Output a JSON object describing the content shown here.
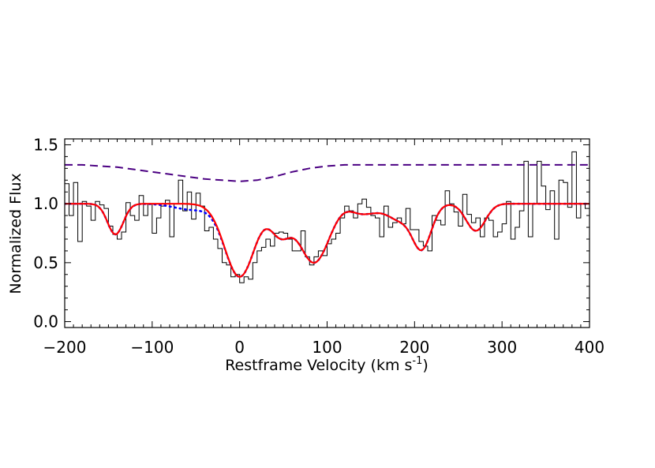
{
  "chart_data": {
    "type": "line",
    "title": "",
    "xlabel": "Restframe Velocity (km s",
    "xlabel_sup": "-1",
    "xlabel_end": ")",
    "ylabel": "Normalized Flux",
    "xlim": [
      -200,
      400
    ],
    "ylim": [
      -0.05,
      1.55
    ],
    "xticks": [
      -200,
      -100,
      0,
      100,
      200,
      300,
      400
    ],
    "xtick_labels": [
      "−200",
      "−100",
      "0",
      "100",
      "200",
      "300",
      "400"
    ],
    "yticks": [
      0.0,
      0.5,
      1.0,
      1.5
    ],
    "ytick_labels": [
      "0.0",
      "0.5",
      "1.0",
      "1.5"
    ],
    "grid": false,
    "colors": {
      "data": "#000000",
      "fit": "#ff0000",
      "model": "#0000ff",
      "offset": "#4b0082"
    },
    "series": [
      {
        "style": "step",
        "color": "#000000",
        "bin_width": 5,
        "x": [
          -200,
          -195,
          -190,
          -185,
          -180,
          -175,
          -170,
          -165,
          -160,
          -155,
          -150,
          -145,
          -140,
          -135,
          -130,
          -125,
          -120,
          -115,
          -110,
          -105,
          -100,
          -95,
          -90,
          -85,
          -80,
          -75,
          -70,
          -65,
          -60,
          -55,
          -50,
          -45,
          -40,
          -35,
          -30,
          -25,
          -20,
          -15,
          -10,
          -5,
          0,
          5,
          10,
          15,
          20,
          25,
          30,
          35,
          40,
          45,
          50,
          55,
          60,
          65,
          70,
          75,
          80,
          85,
          90,
          95,
          100,
          105,
          110,
          115,
          120,
          125,
          130,
          135,
          140,
          145,
          150,
          155,
          160,
          165,
          170,
          175,
          180,
          185,
          190,
          195,
          200,
          205,
          210,
          215,
          220,
          225,
          230,
          235,
          240,
          245,
          250,
          255,
          260,
          265,
          270,
          275,
          280,
          285,
          290,
          295,
          300,
          305,
          310,
          315,
          320,
          325,
          330,
          335,
          340,
          345,
          350,
          355,
          360,
          365,
          370,
          375,
          380,
          385,
          390,
          395
        ],
        "y": [
          1.17,
          0.9,
          1.18,
          0.68,
          1.02,
          0.98,
          0.86,
          1.02,
          0.99,
          0.96,
          0.81,
          0.74,
          0.7,
          0.76,
          1.01,
          0.9,
          0.86,
          1.07,
          0.9,
          1.0,
          0.75,
          0.88,
          0.98,
          1.03,
          0.72,
          1.0,
          1.2,
          0.94,
          1.1,
          0.87,
          1.09,
          0.98,
          0.77,
          0.8,
          0.7,
          0.62,
          0.5,
          0.48,
          0.38,
          0.4,
          0.33,
          0.38,
          0.36,
          0.5,
          0.6,
          0.63,
          0.7,
          0.64,
          0.75,
          0.76,
          0.75,
          0.7,
          0.6,
          0.6,
          0.77,
          0.55,
          0.48,
          0.55,
          0.6,
          0.56,
          0.66,
          0.7,
          0.75,
          0.88,
          0.98,
          0.94,
          0.88,
          1.0,
          1.04,
          0.97,
          0.9,
          0.88,
          0.72,
          0.98,
          0.8,
          0.84,
          0.88,
          0.83,
          0.96,
          0.78,
          0.78,
          0.68,
          0.64,
          0.6,
          0.9,
          0.86,
          0.82,
          1.11,
          1.0,
          0.93,
          0.81,
          1.08,
          0.91,
          0.84,
          0.88,
          0.72,
          0.88,
          0.86,
          0.72,
          0.76,
          0.83,
          1.02,
          0.7,
          0.8,
          0.94,
          1.36,
          0.72,
          1.0,
          1.36,
          1.15,
          0.95,
          1.11,
          0.7,
          1.2,
          1.18,
          0.97,
          1.44,
          0.88,
          1.0,
          0.96
        ]
      },
      {
        "style": "solid",
        "color": "#ff0000",
        "x": [],
        "y": []
      },
      {
        "style": "dotted",
        "color": "#0000ff",
        "x": [],
        "y": []
      },
      {
        "style": "dashed",
        "color": "#4b0082",
        "x": [
          -200,
          -180,
          -160,
          -140,
          -120,
          -100,
          -80,
          -60,
          -40,
          -20,
          0,
          20,
          40,
          60,
          80,
          100,
          120,
          140,
          160,
          180,
          200,
          240,
          280,
          320,
          360,
          400
        ],
        "y": [
          1.33,
          1.33,
          1.32,
          1.31,
          1.29,
          1.27,
          1.25,
          1.23,
          1.21,
          1.2,
          1.19,
          1.2,
          1.23,
          1.27,
          1.3,
          1.32,
          1.33,
          1.33,
          1.33,
          1.33,
          1.33,
          1.33,
          1.33,
          1.33,
          1.33,
          1.33
        ]
      }
    ]
  }
}
